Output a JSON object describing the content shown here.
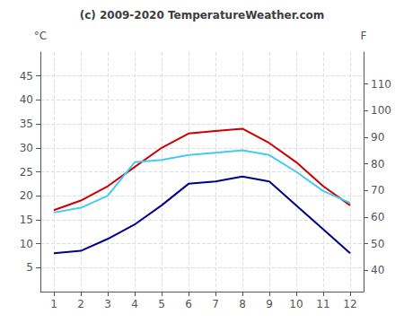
{
  "chart_data": {
    "type": "line",
    "title": "(c) 2009-2020 TemperatureWeather.com",
    "ylabel": "°C",
    "y2label": "F",
    "x": [
      1,
      2,
      3,
      4,
      5,
      6,
      7,
      8,
      9,
      10,
      11,
      12
    ],
    "series": [
      {
        "color": "#cc0000",
        "values": [
          17,
          19,
          22,
          26,
          30,
          33,
          33.5,
          34,
          31,
          27,
          22,
          18
        ]
      },
      {
        "color": "#44ccee",
        "values": [
          16.5,
          17.5,
          20,
          27,
          27.5,
          28.5,
          29,
          29.5,
          28.5,
          25,
          21,
          18.5
        ]
      },
      {
        "color": "#000088",
        "values": [
          8,
          8.5,
          11,
          14,
          18,
          22.5,
          23,
          24,
          23,
          18,
          13,
          8
        ]
      }
    ],
    "xlim": [
      0.5,
      12.5
    ],
    "xticks": [
      1,
      2,
      3,
      4,
      5,
      6,
      7,
      8,
      9,
      10,
      11,
      12
    ],
    "ylim": [
      0,
      50
    ],
    "yticks": [
      5,
      10,
      15,
      20,
      25,
      30,
      35,
      40,
      45
    ],
    "y2lim": [
      32,
      122
    ],
    "y2ticks": [
      40,
      50,
      60,
      70,
      80,
      90,
      100,
      110
    ],
    "grid": true
  }
}
